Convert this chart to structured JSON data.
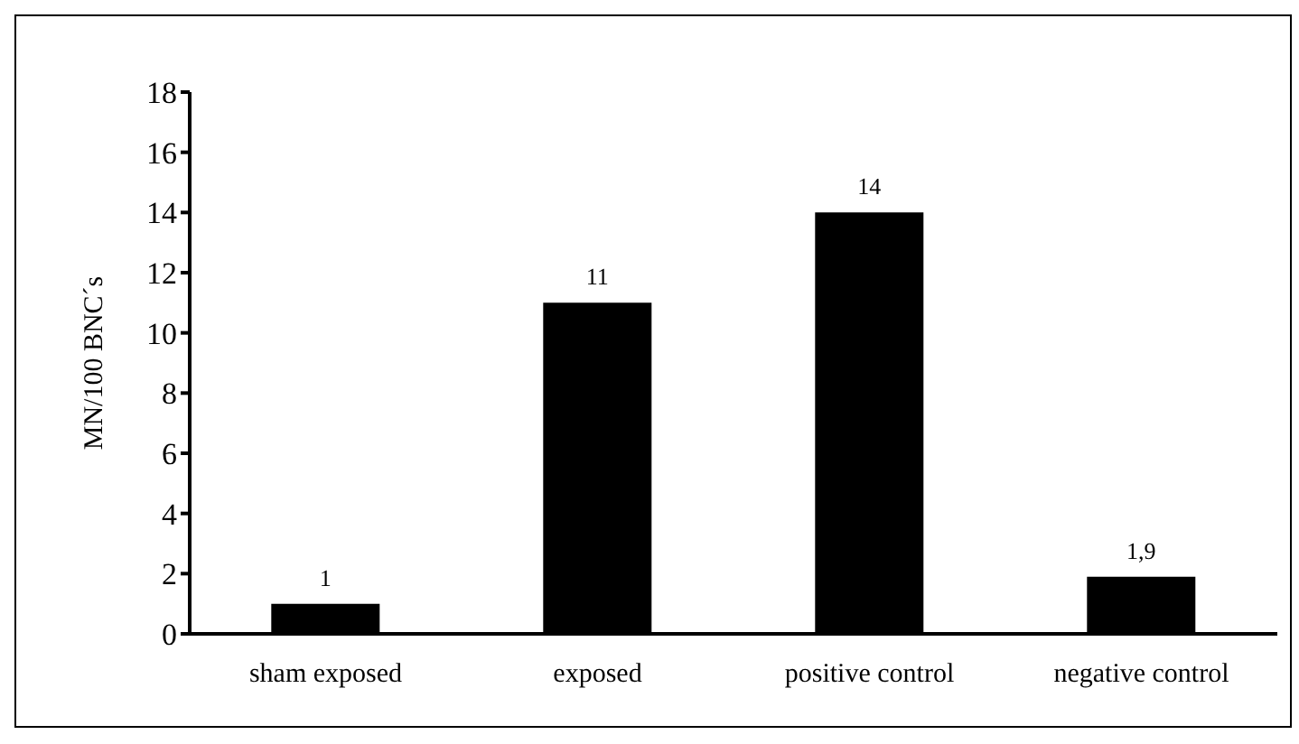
{
  "chart_data": {
    "type": "bar",
    "ylabel": "MN/100 BNC´s",
    "categories": [
      "sham exposed",
      "exposed",
      "positive control",
      "negative control"
    ],
    "values": [
      1,
      11,
      14,
      1.9
    ],
    "value_labels": [
      "1",
      "11",
      "14",
      "1,9"
    ],
    "color": "#000000",
    "ylim": [
      0,
      18
    ],
    "yticks": [
      0,
      2,
      4,
      6,
      8,
      10,
      12,
      14,
      16,
      18
    ],
    "grid": false
  }
}
